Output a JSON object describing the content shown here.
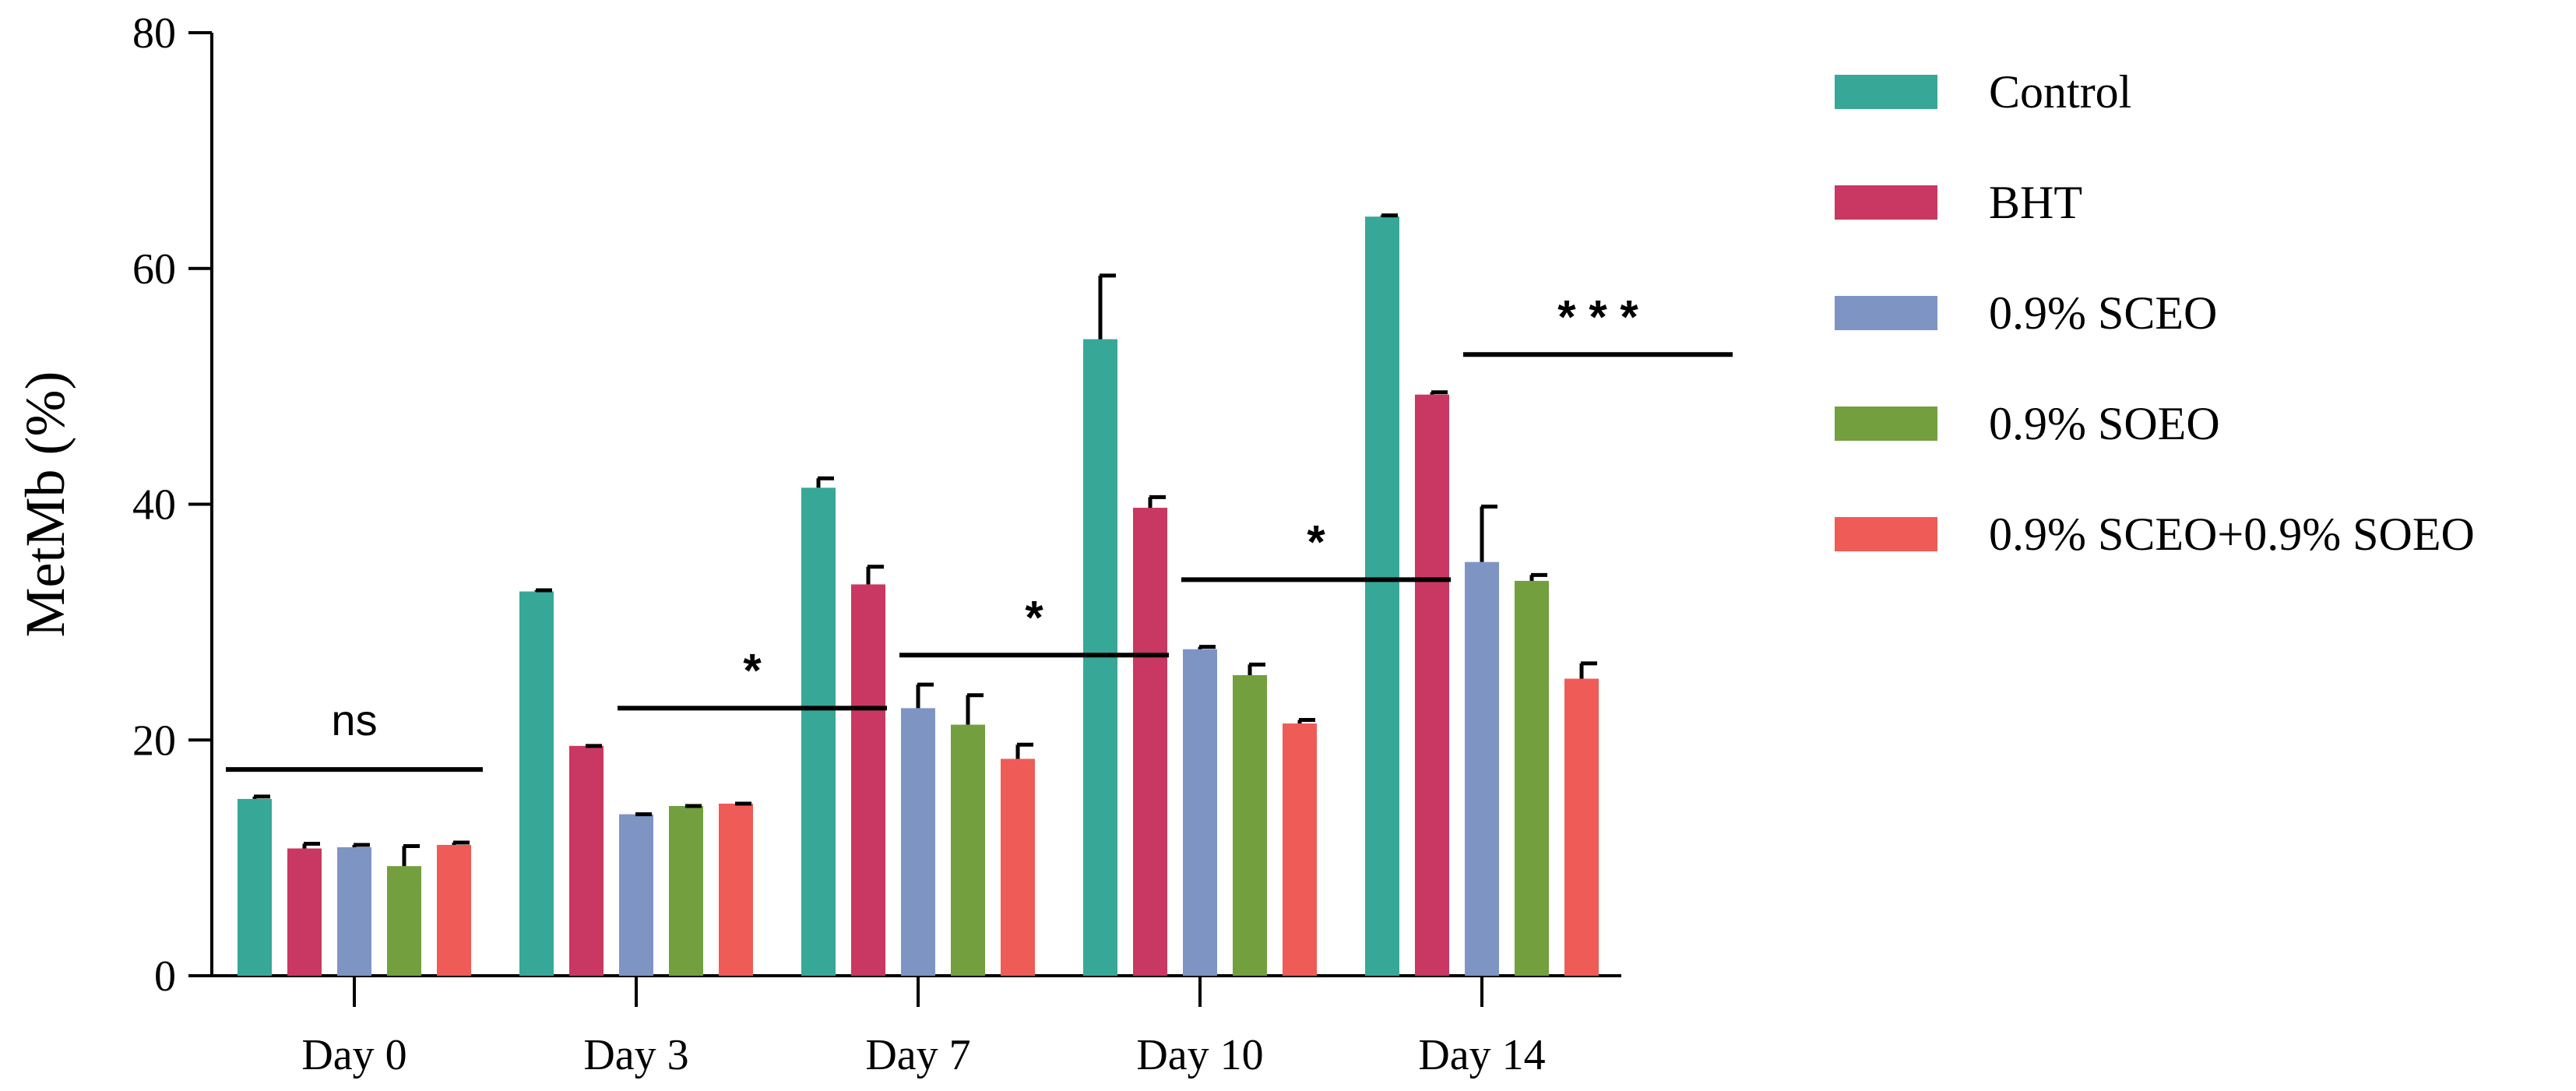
{
  "chart_data": {
    "type": "bar",
    "title": "",
    "xlabel": "",
    "ylabel": "MetMb (%)",
    "ylim": [
      0,
      80
    ],
    "yticks": [
      0,
      20,
      40,
      60,
      80
    ],
    "categories": [
      "Day 0",
      "Day 3",
      "Day 7",
      "Day 10",
      "Day 14"
    ],
    "series": [
      {
        "name": "Control",
        "color": "#37A897",
        "values": [
          15.0,
          32.6,
          41.4,
          54.0,
          64.4
        ],
        "errors": [
          0.2,
          0.1,
          0.8,
          5.4,
          0.1
        ]
      },
      {
        "name": "BHT",
        "color": "#C93862",
        "values": [
          10.8,
          19.5,
          33.2,
          39.7,
          49.3
        ],
        "errors": [
          0.4,
          0.0,
          1.5,
          0.9,
          0.2
        ]
      },
      {
        "name": "0.9% SCEO",
        "color": "#7E95C4",
        "values": [
          10.9,
          13.7,
          22.7,
          27.7,
          35.1
        ],
        "errors": [
          0.2,
          0.0,
          2.0,
          0.2,
          4.7
        ]
      },
      {
        "name": "0.9% SOEO",
        "color": "#739F3F",
        "values": [
          9.3,
          14.4,
          21.3,
          25.5,
          33.5
        ],
        "errors": [
          1.7,
          0.0,
          2.5,
          0.9,
          0.5
        ]
      },
      {
        "name": "0.9% SCEO+0.9% SOEO",
        "color": "#EF5B57",
        "values": [
          11.1,
          14.6,
          18.4,
          21.4,
          25.2
        ],
        "errors": [
          0.2,
          0.0,
          1.2,
          0.3,
          1.3
        ]
      }
    ],
    "significance": [
      {
        "category": "Day 0",
        "label": "ns",
        "level": 17.5
      },
      {
        "category": "Day 3",
        "label": "*",
        "level": 22.7
      },
      {
        "category": "Day 7",
        "label": "*",
        "level": 27.2
      },
      {
        "category": "Day 10",
        "label": "*",
        "level": 33.6
      },
      {
        "category": "Day 14",
        "label": "* * *",
        "level": 52.7
      }
    ],
    "legend_position": "right"
  }
}
